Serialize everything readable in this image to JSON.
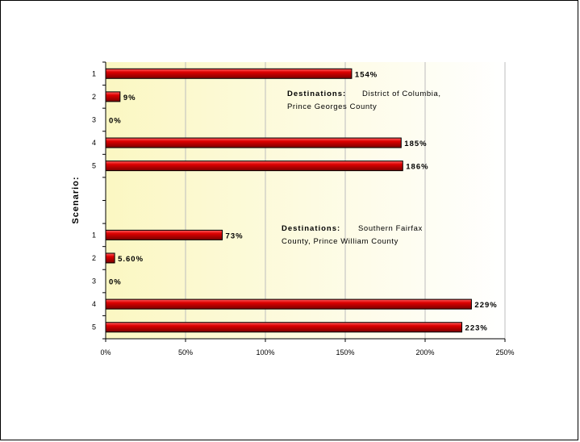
{
  "chart_data": {
    "type": "bar",
    "orientation": "horizontal",
    "ylabel": "Scenario:",
    "xlim": [
      0,
      2.5
    ],
    "x_ticks": [
      "0%",
      "50%",
      "100%",
      "150%",
      "200%",
      "250%"
    ],
    "grid": "vertical",
    "background": "yellow-to-white gradient",
    "groups": [
      {
        "annotation_bold": "Destinations:",
        "annotation_lines": [
          "District of Columbia,",
          "Prince Georges County"
        ],
        "categories": [
          "1",
          "2",
          "3",
          "4",
          "5"
        ],
        "values": [
          1.54,
          0.09,
          0.0,
          1.85,
          1.86
        ],
        "labels": [
          "154%",
          "9%",
          "0%",
          "185%",
          "186%"
        ]
      },
      {
        "annotation_bold": "Destinations:",
        "annotation_lines": [
          "Southern Fairfax",
          "County, Prince William County"
        ],
        "categories": [
          "1",
          "2",
          "3",
          "4",
          "5"
        ],
        "values": [
          0.73,
          0.056,
          0.0,
          2.29,
          2.23
        ],
        "labels": [
          "73%",
          "5.60%",
          "0%",
          "229%",
          "223%"
        ]
      }
    ],
    "colors": {
      "bar": "#dd0000",
      "bar_highlight": "#ff6060",
      "bar_dark": "#7a0000",
      "bg_start": "#fbf7c2",
      "bg_end": "#ffffff"
    }
  }
}
